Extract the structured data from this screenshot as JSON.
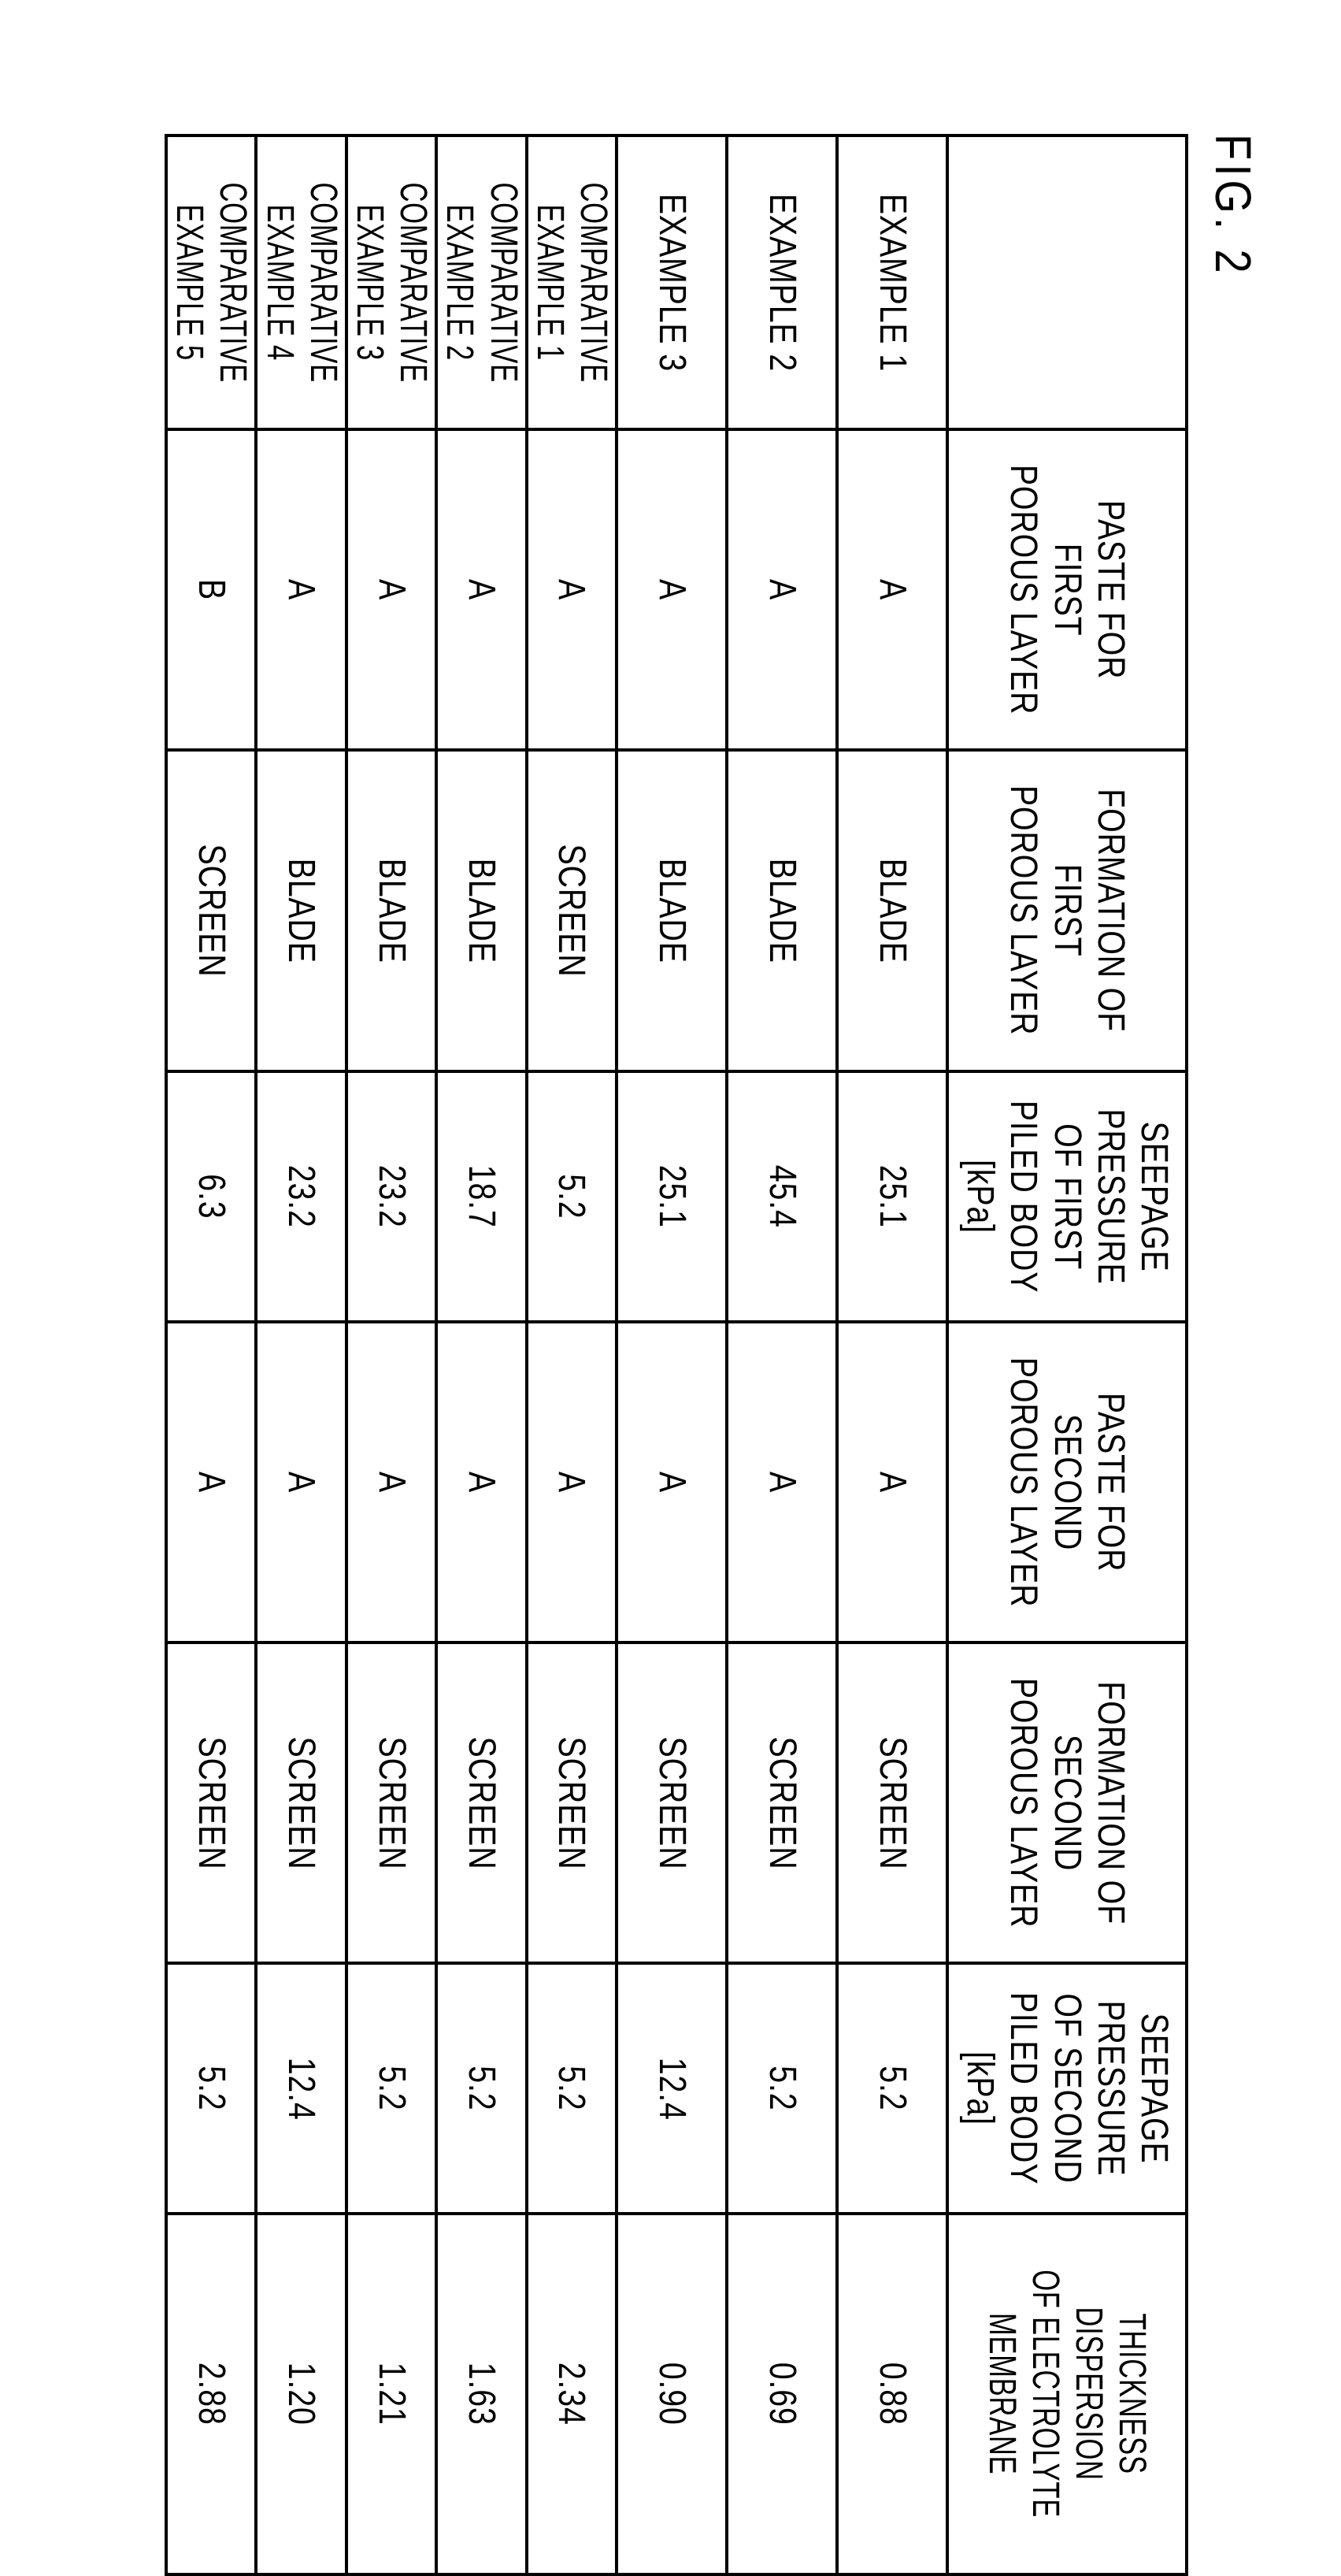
{
  "figure_label": "FIG. 2",
  "table": {
    "columns": [
      "",
      "PASTE FOR\nFIRST\nPOROUS LAYER",
      "FORMATION OF\nFIRST\nPOROUS LAYER",
      "SEEPAGE\nPRESSURE\nOF FIRST\nPILED BODY\n[kPa]",
      "PASTE FOR\nSECOND\nPOROUS LAYER",
      "FORMATION OF\nSECOND\nPOROUS LAYER",
      "SEEPAGE\nPRESSURE\nOF SECOND\nPILED BODY\n[kPa]",
      "THICKNESS\nDISPERSION\nOF ELECTROLYTE\nMEMBRANE"
    ],
    "rows": [
      {
        "label": "EXAMPLE 1",
        "cells": [
          "A",
          "BLADE",
          "25.1",
          "A",
          "SCREEN",
          "5.2",
          "0.88"
        ],
        "short": false
      },
      {
        "label": "EXAMPLE 2",
        "cells": [
          "A",
          "BLADE",
          "45.4",
          "A",
          "SCREEN",
          "5.2",
          "0.69"
        ],
        "short": false
      },
      {
        "label": "EXAMPLE 3",
        "cells": [
          "A",
          "BLADE",
          "25.1",
          "A",
          "SCREEN",
          "12.4",
          "0.90"
        ],
        "short": false
      },
      {
        "label": "COMPARATIVE\nEXAMPLE 1",
        "cells": [
          "A",
          "SCREEN",
          "5.2",
          "A",
          "SCREEN",
          "5.2",
          "2.34"
        ],
        "short": true
      },
      {
        "label": "COMPARATIVE\nEXAMPLE 2",
        "cells": [
          "A",
          "BLADE",
          "18.7",
          "A",
          "SCREEN",
          "5.2",
          "1.63"
        ],
        "short": true
      },
      {
        "label": "COMPARATIVE\nEXAMPLE 3",
        "cells": [
          "A",
          "BLADE",
          "23.2",
          "A",
          "SCREEN",
          "5.2",
          "1.21"
        ],
        "short": true
      },
      {
        "label": "COMPARATIVE\nEXAMPLE 4",
        "cells": [
          "A",
          "BLADE",
          "23.2",
          "A",
          "SCREEN",
          "12.4",
          "1.20"
        ],
        "short": true
      },
      {
        "label": "COMPARATIVE\nEXAMPLE 5",
        "cells": [
          "B",
          "SCREEN",
          "6.3",
          "A",
          "SCREEN",
          "5.2",
          "2.88"
        ],
        "short": true
      }
    ]
  }
}
